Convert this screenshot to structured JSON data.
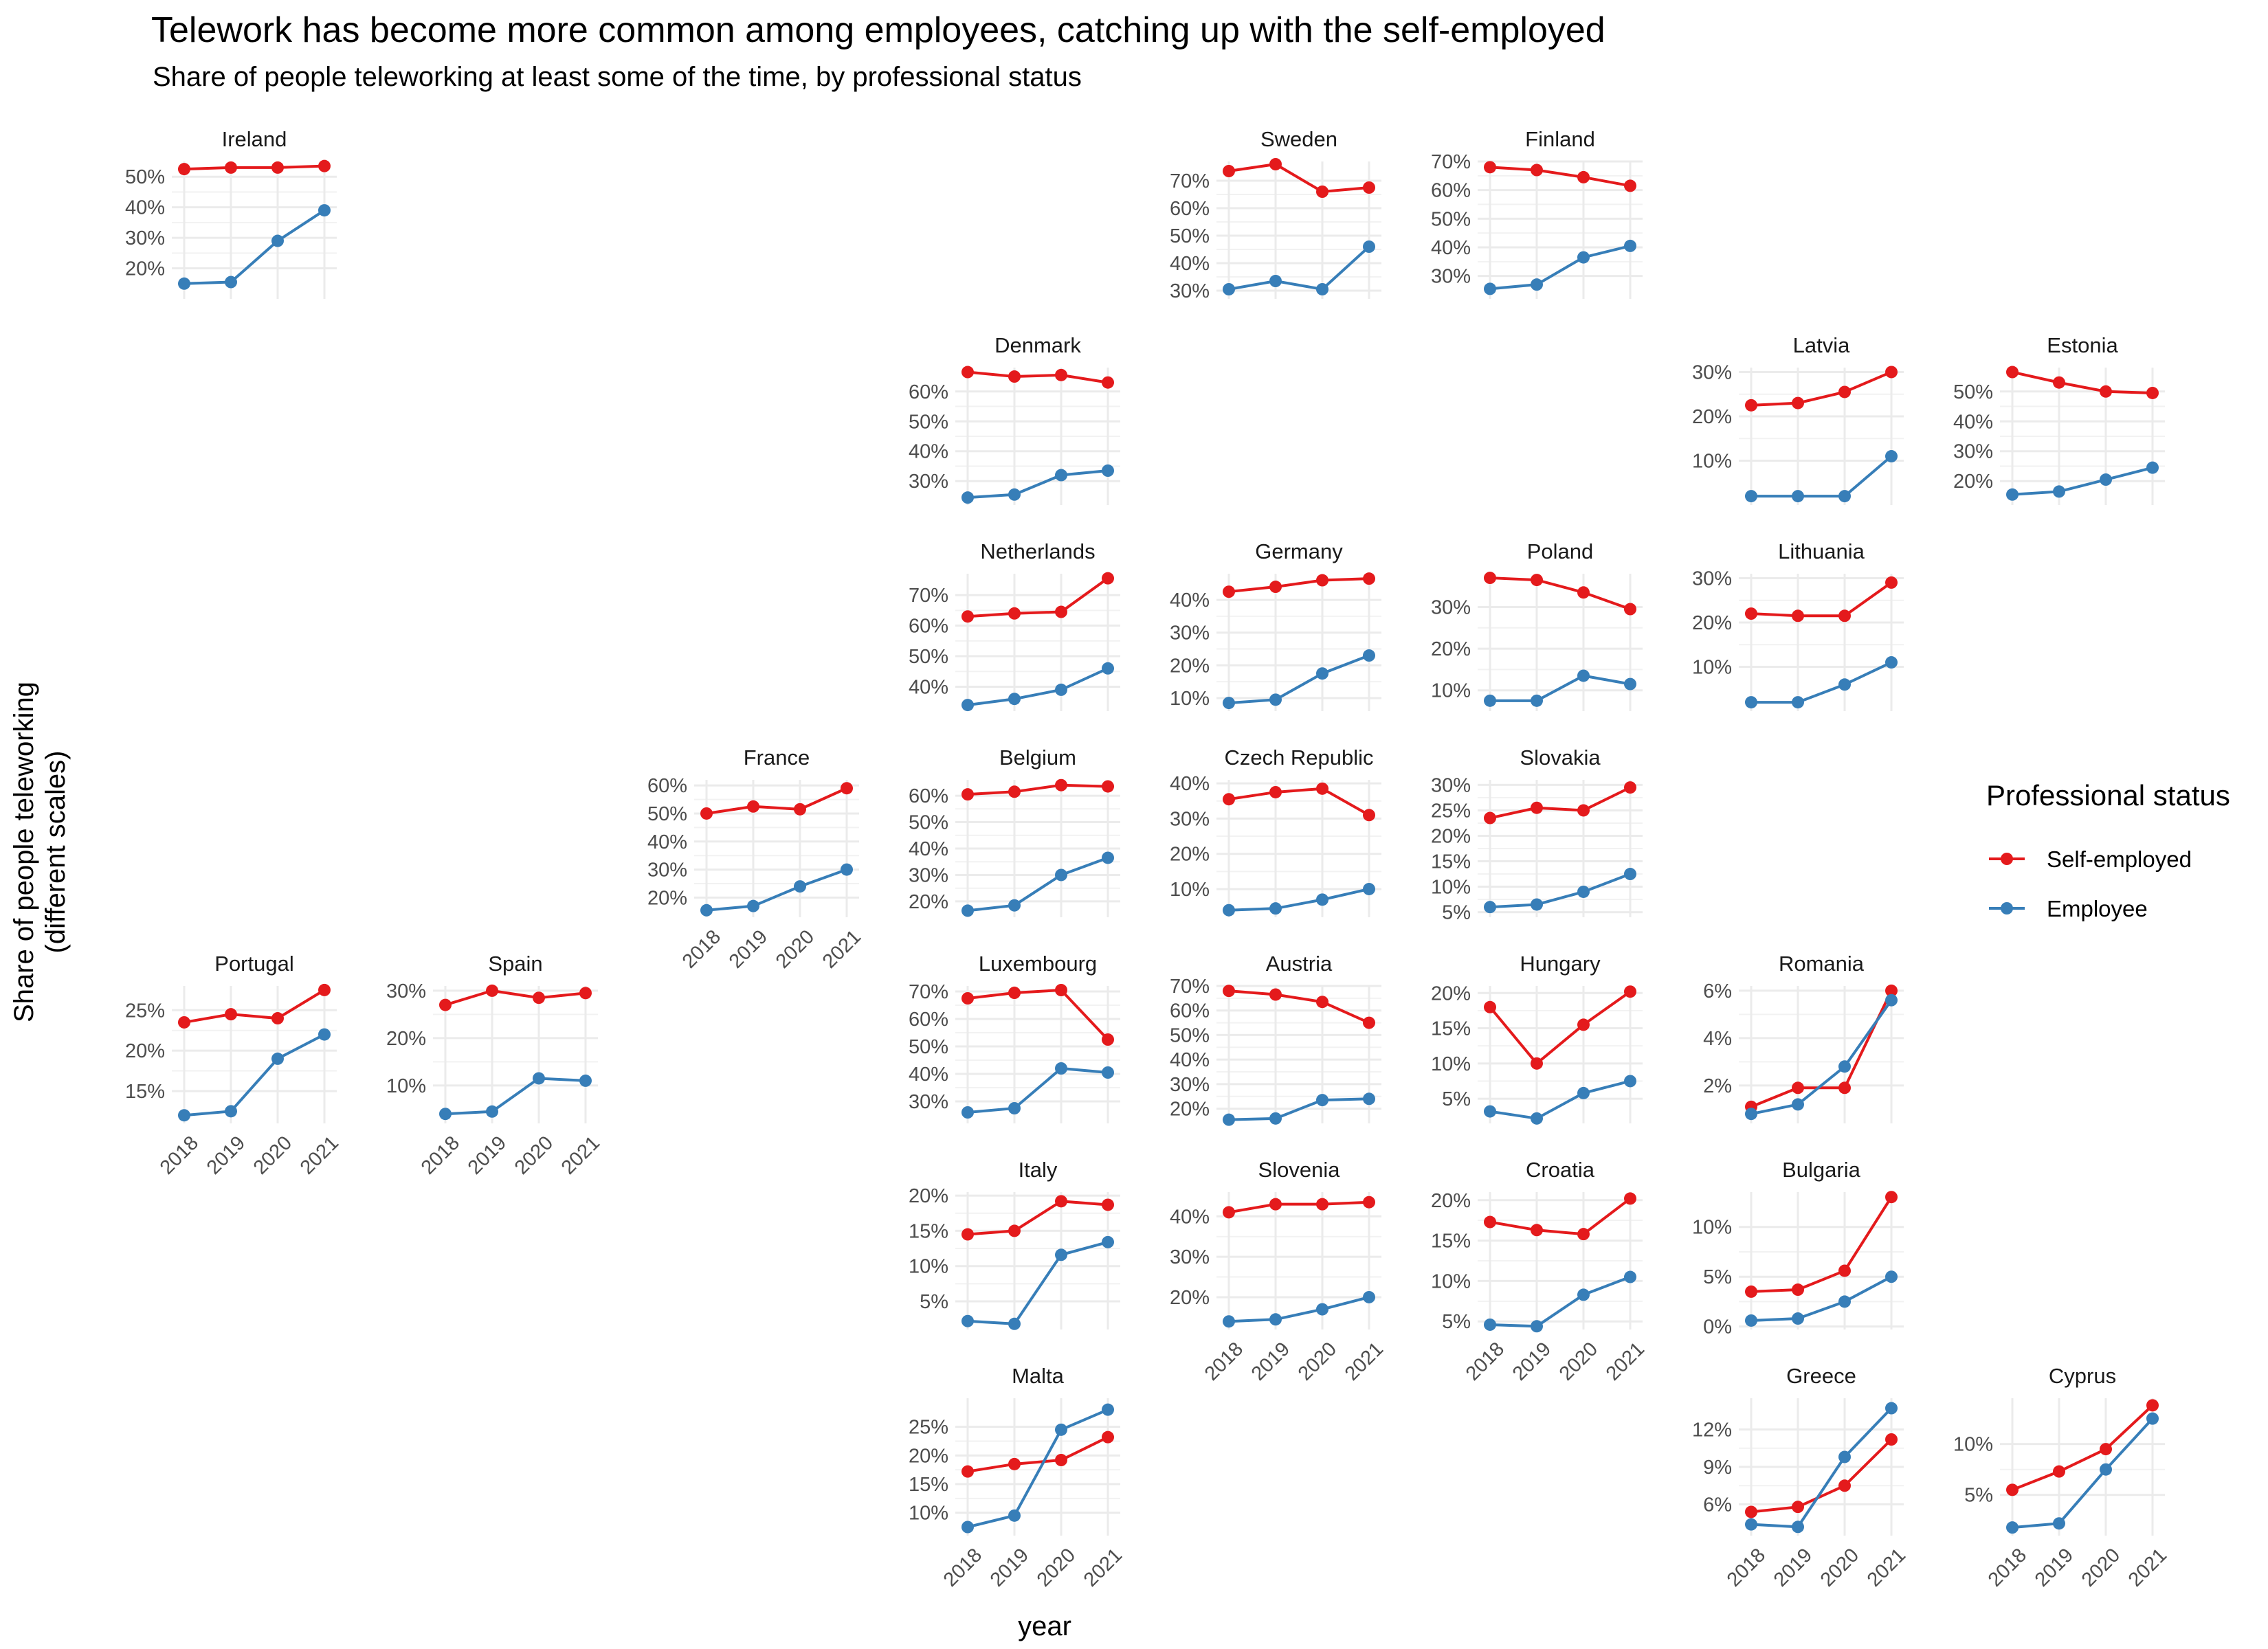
{
  "chart_data": {
    "type": "line",
    "title": "Telework has become more common among employees, catching up with the self-employed",
    "subtitle": "Share of people teleworking at least some of the time, by professional status",
    "xlabel": "year",
    "ylabel": "Share of people teleworking\n(different scales)",
    "x": [
      2018,
      2019,
      2020,
      2021
    ],
    "legend": {
      "title": "Professional status",
      "placement": "right",
      "entries": [
        {
          "key": "self_employed",
          "label": "Self-employed",
          "color": "#E41A1C"
        },
        {
          "key": "employee",
          "label": "Employee",
          "color": "#377EB8"
        }
      ]
    },
    "grid": true,
    "panels": [
      {
        "name": "Ireland",
        "row": 0,
        "col": 0,
        "ylim": [
          10,
          55
        ],
        "yticks": [
          20,
          30,
          40,
          50
        ],
        "tick_format": "%",
        "series": {
          "self_employed": [
            52.5,
            53,
            53,
            53.5
          ],
          "employee": [
            15,
            15.5,
            29,
            39
          ]
        }
      },
      {
        "name": "Sweden",
        "row": 0,
        "col": 4,
        "ylim": [
          27,
          77
        ],
        "yticks": [
          30,
          40,
          50,
          60,
          70
        ],
        "tick_format": "%",
        "series": {
          "self_employed": [
            73.5,
            76,
            66,
            67.5
          ],
          "employee": [
            30.5,
            33.5,
            30.5,
            46
          ]
        }
      },
      {
        "name": "Finland",
        "row": 0,
        "col": 5,
        "ylim": [
          22,
          70
        ],
        "yticks": [
          30,
          40,
          50,
          60,
          70
        ],
        "tick_format": "%",
        "series": {
          "self_employed": [
            68,
            67,
            64.5,
            61.5
          ],
          "employee": [
            25.5,
            27,
            36.5,
            40.5
          ]
        }
      },
      {
        "name": "Denmark",
        "row": 1,
        "col": 3,
        "ylim": [
          22,
          68
        ],
        "yticks": [
          30,
          40,
          50,
          60
        ],
        "tick_format": "%",
        "series": {
          "self_employed": [
            66.5,
            65,
            65.5,
            63
          ],
          "employee": [
            24.5,
            25.5,
            32,
            33.5
          ]
        }
      },
      {
        "name": "Latvia",
        "row": 1,
        "col": 6,
        "ylim": [
          0,
          31
        ],
        "yticks": [
          10,
          20,
          30
        ],
        "tick_format": "%",
        "series": {
          "self_employed": [
            22.5,
            23,
            25.5,
            30
          ],
          "employee": [
            2,
            2,
            2,
            11
          ]
        }
      },
      {
        "name": "Estonia",
        "row": 1,
        "col": 7,
        "ylim": [
          12,
          58
        ],
        "yticks": [
          20,
          30,
          40,
          50
        ],
        "tick_format": "%",
        "series": {
          "self_employed": [
            56.5,
            53,
            50,
            49.5
          ],
          "employee": [
            15.5,
            16.5,
            20.5,
            24.5
          ]
        }
      },
      {
        "name": "Netherlands",
        "row": 2,
        "col": 3,
        "ylim": [
          32,
          77
        ],
        "yticks": [
          40,
          50,
          60,
          70
        ],
        "tick_format": "%",
        "series": {
          "self_employed": [
            63,
            64,
            64.5,
            75.5
          ],
          "employee": [
            34,
            36,
            39,
            46
          ]
        }
      },
      {
        "name": "Germany",
        "row": 2,
        "col": 4,
        "ylim": [
          6,
          48
        ],
        "yticks": [
          10,
          20,
          30,
          40
        ],
        "tick_format": "%",
        "series": {
          "self_employed": [
            42.5,
            44,
            46,
            46.5
          ],
          "employee": [
            8.5,
            9.5,
            17.5,
            23
          ]
        }
      },
      {
        "name": "Poland",
        "row": 2,
        "col": 5,
        "ylim": [
          5,
          38
        ],
        "yticks": [
          10,
          20,
          30
        ],
        "tick_format": "%",
        "series": {
          "self_employed": [
            37,
            36.5,
            33.5,
            29.5
          ],
          "employee": [
            7.5,
            7.5,
            13.5,
            11.5
          ]
        }
      },
      {
        "name": "Lithuania",
        "row": 2,
        "col": 6,
        "ylim": [
          0,
          31
        ],
        "yticks": [
          10,
          20,
          30
        ],
        "tick_format": "%",
        "series": {
          "self_employed": [
            22,
            21.5,
            21.5,
            29
          ],
          "employee": [
            2,
            2,
            6,
            11
          ]
        }
      },
      {
        "name": "France",
        "row": 3,
        "col": 2,
        "ylim": [
          13,
          62
        ],
        "yticks": [
          20,
          30,
          40,
          50,
          60
        ],
        "tick_format": "%",
        "series": {
          "self_employed": [
            50,
            52.5,
            51.5,
            59
          ],
          "employee": [
            15.5,
            17,
            24,
            30
          ]
        }
      },
      {
        "name": "Belgium",
        "row": 3,
        "col": 3,
        "ylim": [
          14,
          66
        ],
        "yticks": [
          20,
          30,
          40,
          50,
          60
        ],
        "tick_format": "%",
        "series": {
          "self_employed": [
            60.5,
            61.5,
            64,
            63.5
          ],
          "employee": [
            16.5,
            18.5,
            30,
            36.5
          ]
        }
      },
      {
        "name": "Czech Republic",
        "row": 3,
        "col": 4,
        "ylim": [
          2,
          41
        ],
        "yticks": [
          10,
          20,
          30,
          40
        ],
        "tick_format": "%",
        "series": {
          "self_employed": [
            35.5,
            37.5,
            38.5,
            31
          ],
          "employee": [
            4,
            4.5,
            7,
            10
          ]
        }
      },
      {
        "name": "Slovakia",
        "row": 3,
        "col": 5,
        "ylim": [
          4,
          31
        ],
        "yticks": [
          5,
          10,
          15,
          20,
          25,
          30
        ],
        "tick_format": "%",
        "series": {
          "self_employed": [
            23.5,
            25.5,
            25,
            29.5
          ],
          "employee": [
            6,
            6.5,
            9,
            12.5
          ]
        }
      },
      {
        "name": "Portugal",
        "row": 4,
        "col": 0,
        "ylim": [
          11,
          28
        ],
        "yticks": [
          15,
          20,
          25
        ],
        "tick_format": "%",
        "series": {
          "self_employed": [
            23.5,
            24.5,
            24,
            27.5
          ],
          "employee": [
            12,
            12.5,
            19,
            22
          ]
        }
      },
      {
        "name": "Spain",
        "row": 4,
        "col": 1,
        "ylim": [
          2,
          31
        ],
        "yticks": [
          10,
          20,
          30
        ],
        "tick_format": "%",
        "series": {
          "self_employed": [
            27,
            30,
            28.5,
            29.5
          ],
          "employee": [
            4,
            4.5,
            11.5,
            11
          ]
        }
      },
      {
        "name": "Luxembourg",
        "row": 4,
        "col": 3,
        "ylim": [
          22,
          72
        ],
        "yticks": [
          30,
          40,
          50,
          60,
          70
        ],
        "tick_format": "%",
        "series": {
          "self_employed": [
            67.5,
            69.5,
            70.5,
            52.5
          ],
          "employee": [
            26,
            27.5,
            42,
            40.5
          ]
        }
      },
      {
        "name": "Austria",
        "row": 4,
        "col": 4,
        "ylim": [
          14,
          70
        ],
        "yticks": [
          20,
          30,
          40,
          50,
          60,
          70
        ],
        "tick_format": "%",
        "series": {
          "self_employed": [
            68,
            66.5,
            63.5,
            55
          ],
          "employee": [
            15.5,
            16,
            23.5,
            24
          ]
        }
      },
      {
        "name": "Hungary",
        "row": 4,
        "col": 5,
        "ylim": [
          1.5,
          21
        ],
        "yticks": [
          5,
          10,
          15,
          20
        ],
        "tick_format": "%",
        "series": {
          "self_employed": [
            18,
            10,
            15.5,
            20.2
          ],
          "employee": [
            3.2,
            2.2,
            5.8,
            7.5
          ]
        }
      },
      {
        "name": "Romania",
        "row": 4,
        "col": 6,
        "ylim": [
          0.4,
          6.2
        ],
        "yticks": [
          2,
          4,
          6
        ],
        "tick_format": "%",
        "series": {
          "self_employed": [
            1.1,
            1.9,
            1.9,
            6
          ],
          "employee": [
            0.8,
            1.2,
            2.8,
            5.6
          ]
        }
      },
      {
        "name": "Italy",
        "row": 5,
        "col": 3,
        "ylim": [
          1,
          20.5
        ],
        "yticks": [
          5,
          10,
          15,
          20
        ],
        "tick_format": "%",
        "series": {
          "self_employed": [
            14.5,
            15,
            19.2,
            18.7
          ],
          "employee": [
            2.2,
            1.8,
            11.6,
            13.4
          ]
        }
      },
      {
        "name": "Slovenia",
        "row": 5,
        "col": 4,
        "ylim": [
          12,
          46
        ],
        "yticks": [
          20,
          30,
          40
        ],
        "tick_format": "%",
        "series": {
          "self_employed": [
            41,
            43,
            43,
            43.5
          ],
          "employee": [
            14,
            14.5,
            17,
            20
          ]
        }
      },
      {
        "name": "Croatia",
        "row": 5,
        "col": 5,
        "ylim": [
          4,
          21
        ],
        "yticks": [
          5,
          10,
          15,
          20
        ],
        "tick_format": "%",
        "series": {
          "self_employed": [
            17.3,
            16.3,
            15.8,
            20.2
          ],
          "employee": [
            4.6,
            4.4,
            8.3,
            10.5
          ]
        }
      },
      {
        "name": "Bulgaria",
        "row": 5,
        "col": 6,
        "ylim": [
          -0.3,
          13.5
        ],
        "yticks": [
          0,
          5,
          10
        ],
        "tick_format": "%",
        "series": {
          "self_employed": [
            3.5,
            3.7,
            5.6,
            13
          ],
          "employee": [
            0.6,
            0.8,
            2.5,
            5
          ]
        }
      },
      {
        "name": "Malta",
        "row": 6,
        "col": 3,
        "ylim": [
          6,
          30
        ],
        "yticks": [
          10,
          15,
          20,
          25
        ],
        "tick_format": "%",
        "series": {
          "self_employed": [
            17.2,
            18.5,
            19.2,
            23.2
          ],
          "employee": [
            7.5,
            9.5,
            24.5,
            28
          ]
        }
      },
      {
        "name": "Greece",
        "row": 6,
        "col": 6,
        "ylim": [
          3.5,
          14.5
        ],
        "yticks": [
          6,
          9,
          12
        ],
        "tick_format": "%",
        "series": {
          "self_employed": [
            5.4,
            5.8,
            7.5,
            11.2
          ],
          "employee": [
            4.4,
            4.2,
            9.8,
            13.7
          ]
        }
      },
      {
        "name": "Cyprus",
        "row": 6,
        "col": 7,
        "ylim": [
          1,
          14.5
        ],
        "yticks": [
          5,
          10
        ],
        "tick_format": "%",
        "series": {
          "self_employed": [
            5.5,
            7.3,
            9.5,
            13.8
          ],
          "employee": [
            1.8,
            2.2,
            7.5,
            12.5
          ]
        }
      }
    ]
  }
}
